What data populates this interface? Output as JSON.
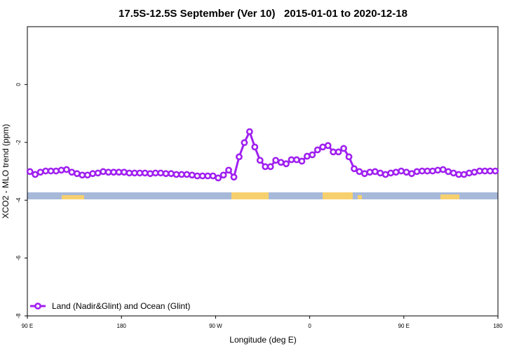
{
  "chart_data": {
    "type": "line",
    "title": "17.5S-12.5S September (Ver 10)   2015-01-01 to 2020-12-18",
    "x_label": "Longitude (deg E)",
    "y_label": "XCO2 - MLO trend (ppm)",
    "xlim": [
      90,
      540
    ],
    "ylim": [
      -8,
      2
    ],
    "xticks": [
      {
        "value": 90,
        "label": "90 E"
      },
      180,
      {
        "value": 270,
        "label": "90 W"
      },
      {
        "value": 360,
        "label": "0"
      },
      {
        "value": 450,
        "label": "90 E"
      },
      {
        "value": 540,
        "label": "180"
      }
    ],
    "yticks": [
      -8,
      -6,
      -4,
      -2,
      0
    ],
    "legend": "bottom-left",
    "x": [
      92.5,
      97.5,
      102.5,
      107.5,
      112.5,
      117.5,
      122.5,
      127.5,
      132.5,
      137.5,
      142.5,
      147.5,
      152.5,
      157.5,
      162.5,
      167.5,
      172.5,
      177.5,
      182.5,
      187.5,
      192.5,
      197.5,
      202.5,
      207.5,
      212.5,
      217.5,
      222.5,
      227.5,
      232.5,
      237.5,
      242.5,
      247.5,
      252.5,
      257.5,
      262.5,
      267.5,
      272.5,
      277.5,
      282.5,
      287.5,
      292.5,
      297.5,
      302.5,
      307.5,
      312.5,
      317.5,
      322.5,
      327.5,
      332.5,
      337.5,
      342.5,
      347.5,
      352.5,
      357.5,
      362.5,
      367.5,
      372.5,
      377.5,
      382.5,
      387.5,
      392.5,
      397.5,
      402.5,
      407.5,
      412.5,
      417.5,
      422.5,
      427.5,
      432.5,
      437.5,
      442.5,
      447.5,
      452.5,
      457.5,
      462.5,
      467.5,
      472.5,
      477.5,
      482.5,
      487.5,
      492.5,
      497.5,
      502.5,
      507.5,
      512.5,
      517.5,
      522.5,
      527.5,
      532.5,
      537.5
    ],
    "series": [
      {
        "name": "Land (Nadir&Glint) and Ocean (Glint)",
        "color": "#a020f0",
        "values": [
          -3.01,
          -3.11,
          -3.03,
          -2.99,
          -2.99,
          -2.99,
          -2.96,
          -2.94,
          -3.03,
          -3.08,
          -3.13,
          -3.13,
          -3.08,
          -3.06,
          -3.01,
          -3.03,
          -3.03,
          -3.03,
          -3.03,
          -3.06,
          -3.06,
          -3.06,
          -3.06,
          -3.08,
          -3.06,
          -3.06,
          -3.08,
          -3.08,
          -3.11,
          -3.11,
          -3.11,
          -3.13,
          -3.16,
          -3.16,
          -3.16,
          -3.16,
          -3.23,
          -3.13,
          -2.96,
          -3.2,
          -2.5,
          -2.01,
          -1.63,
          -2.16,
          -2.62,
          -2.84,
          -2.84,
          -2.62,
          -2.69,
          -2.74,
          -2.6,
          -2.6,
          -2.65,
          -2.48,
          -2.43,
          -2.26,
          -2.16,
          -2.11,
          -2.33,
          -2.33,
          -2.21,
          -2.5,
          -2.91,
          -3.01,
          -3.08,
          -3.03,
          -3.01,
          -3.06,
          -3.11,
          -3.06,
          -3.03,
          -2.99,
          -3.03,
          -3.08,
          -3.01,
          -2.99,
          -2.99,
          -2.99,
          -2.96,
          -2.94,
          -3.01,
          -3.06,
          -3.11,
          -3.11,
          -3.06,
          -3.03,
          -2.99,
          -2.99,
          -2.99,
          -2.99
        ]
      }
    ]
  }
}
